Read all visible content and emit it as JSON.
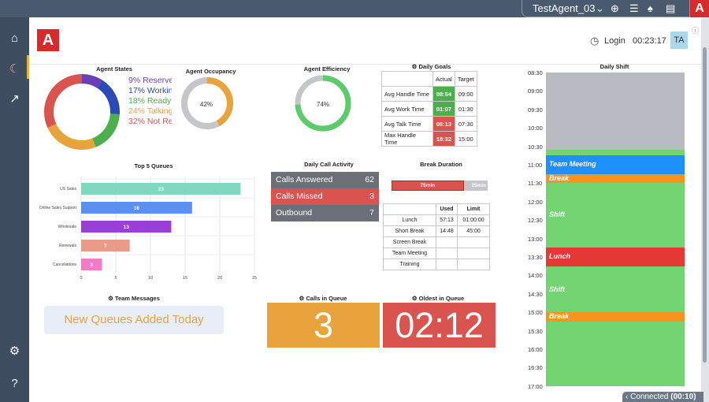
{
  "topbar": {
    "agent_name": "TestAgent_03"
  },
  "header": {
    "login_label": "Login",
    "login_time": "00:23:17",
    "avatar_initials": "TA"
  },
  "agent_states": {
    "title": "Agent States",
    "items": [
      {
        "label": "9% Reserve",
        "color": "#6a3fb5"
      },
      {
        "label": "17% Working",
        "color": "#2a4bb5"
      },
      {
        "label": "18% Ready",
        "color": "#4cae4c"
      },
      {
        "label": "24% Talking",
        "color": "#e8a33c"
      },
      {
        "label": "32% Not Re",
        "color": "#d9534f"
      }
    ]
  },
  "agent_occupancy": {
    "title": "Agent Occupancy",
    "value_label": "42%",
    "value": 0.42
  },
  "agent_efficiency": {
    "title": "Agent Efficiency",
    "value_label": "74%",
    "value": 0.74
  },
  "daily_goals": {
    "title": "Daily Goals",
    "headers": [
      "",
      "Actual",
      "Target"
    ],
    "rows": [
      {
        "name": "Avg Handle Time",
        "actual": "08:54",
        "target": "09:00",
        "status": "green"
      },
      {
        "name": "Avg Work Time",
        "actual": "01:07",
        "target": "01:30",
        "status": "green"
      },
      {
        "name": "Avg Talk Time",
        "actual": "08:13",
        "target": "07:30",
        "status": "red"
      },
      {
        "name": "Max Handle Time",
        "actual": "18:32",
        "target": "15:00",
        "status": "red"
      }
    ]
  },
  "top_queues": {
    "title": "Top 5 Queues",
    "chart_data": {
      "type": "bar",
      "orientation": "horizontal",
      "categories": [
        "US Sales",
        "Online Sales Support",
        "Wholesale",
        "Renewals",
        "Cancellations"
      ],
      "values": [
        23,
        16,
        13,
        7,
        3
      ],
      "colors": [
        "#7fd8c0",
        "#5b8ff0",
        "#9b3fd6",
        "#ea9a88",
        "#f07cc6"
      ],
      "xlim": [
        0,
        25
      ],
      "xticks": [
        "0",
        "5",
        "10",
        "15",
        "20",
        "25"
      ]
    }
  },
  "call_activity": {
    "title": "Daily Call Activity",
    "rows": [
      {
        "label": "Calls Answered",
        "value": "62",
        "color": "#6c6f78"
      },
      {
        "label": "Calls Missed",
        "value": "3",
        "color": "#d9534f"
      },
      {
        "label": "Outbound",
        "value": "7",
        "color": "#6c6f78"
      }
    ]
  },
  "break_duration": {
    "title": "Break Duration",
    "used_label": "75min",
    "remaining_label": "25min",
    "used_fraction": 0.75,
    "headers": [
      "",
      "Used",
      "Limit"
    ],
    "rows": [
      {
        "name": "Lunch",
        "used": "57:13",
        "limit": "01:00:00"
      },
      {
        "name": "Short Break",
        "used": "14:48",
        "limit": "45:00"
      },
      {
        "name": "Screen Break",
        "used": "",
        "limit": ""
      },
      {
        "name": "Team Meeting",
        "used": "",
        "limit": ""
      },
      {
        "name": "Training",
        "used": "",
        "limit": ""
      }
    ]
  },
  "team_messages": {
    "title": "Team Messages",
    "message": "New Queues Added Today"
  },
  "calls_in_queue": {
    "title": "Calls in Queue",
    "value": "3"
  },
  "oldest_in_queue": {
    "title": "Oldest in Queue",
    "value": "02:12"
  },
  "daily_shift": {
    "title": "Daily Shift",
    "times": [
      "08:30",
      "09:00",
      "09:30",
      "10:00",
      "10:30",
      "11:00",
      "11:30",
      "12:00",
      "12:30",
      "13:00",
      "13:30",
      "14:00",
      "14:30",
      "15:00",
      "15:30",
      "16:00",
      "16:30",
      "17:00"
    ],
    "blocks": [
      {
        "label": "",
        "start": "08:30",
        "end": "10:35",
        "color": "#b8bcc2"
      },
      {
        "label": "",
        "start": "10:35",
        "end": "10:45",
        "color": "#72d572"
      },
      {
        "label": "Team Meeting",
        "start": "10:45",
        "end": "11:15",
        "color": "#1e90ff"
      },
      {
        "label": "Break",
        "start": "11:15",
        "end": "11:30",
        "color": "#f5941e"
      },
      {
        "label": "Shift",
        "start": "11:30",
        "end": "13:15",
        "color": "#72d572"
      },
      {
        "label": "Lunch",
        "start": "13:15",
        "end": "13:45",
        "color": "#e53935"
      },
      {
        "label": "Shift",
        "start": "13:45",
        "end": "15:00",
        "color": "#72d572"
      },
      {
        "label": "Break",
        "start": "15:00",
        "end": "15:15",
        "color": "#f5941e"
      },
      {
        "label": "",
        "start": "15:15",
        "end": "17:00",
        "color": "#72d572"
      }
    ]
  },
  "status": {
    "label": "Connected",
    "timer": "(00:10)"
  }
}
